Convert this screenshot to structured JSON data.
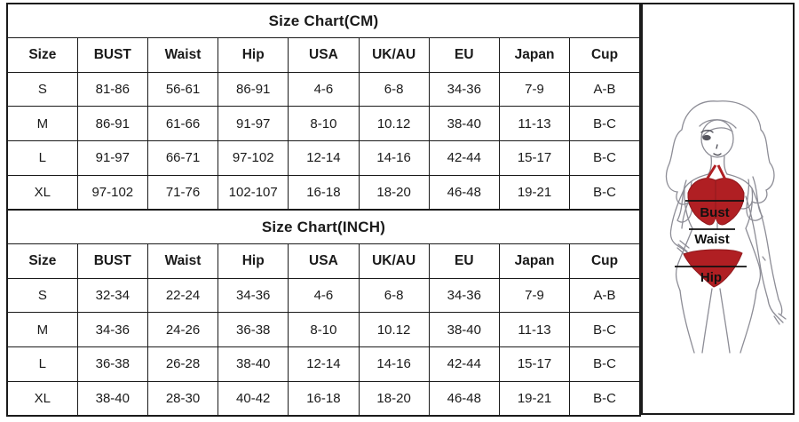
{
  "tables": [
    {
      "id": "cm",
      "title": "Size Chart(CM)",
      "columns": [
        "Size",
        "BUST",
        "Waist",
        "Hip",
        "USA",
        "UK/AU",
        "EU",
        "Japan",
        "Cup"
      ],
      "rows": [
        [
          "S",
          "81-86",
          "56-61",
          "86-91",
          "4-6",
          "6-8",
          "34-36",
          "7-9",
          "A-B"
        ],
        [
          "M",
          "86-91",
          "61-66",
          "91-97",
          "8-10",
          "10.12",
          "38-40",
          "11-13",
          "B-C"
        ],
        [
          "L",
          "91-97",
          "66-71",
          "97-102",
          "12-14",
          "14-16",
          "42-44",
          "15-17",
          "B-C"
        ],
        [
          "XL",
          "97-102",
          "71-76",
          "102-107",
          "16-18",
          "18-20",
          "46-48",
          "19-21",
          "B-C"
        ]
      ]
    },
    {
      "id": "inch",
      "title": "Size Chart(INCH)",
      "columns": [
        "Size",
        "BUST",
        "Waist",
        "Hip",
        "USA",
        "UK/AU",
        "EU",
        "Japan",
        "Cup"
      ],
      "rows": [
        [
          "S",
          "32-34",
          "22-24",
          "34-36",
          "4-6",
          "6-8",
          "34-36",
          "7-9",
          "A-B"
        ],
        [
          "M",
          "34-36",
          "24-26",
          "36-38",
          "8-10",
          "10.12",
          "38-40",
          "11-13",
          "B-C"
        ],
        [
          "L",
          "36-38",
          "26-28",
          "38-40",
          "12-14",
          "14-16",
          "42-44",
          "15-17",
          "B-C"
        ],
        [
          "XL",
          "38-40",
          "28-30",
          "40-42",
          "16-18",
          "18-20",
          "46-48",
          "19-21",
          "B-C"
        ]
      ]
    }
  ],
  "figure": {
    "labels": {
      "bust": "Bust",
      "waist": "Waist",
      "hip": "Hip"
    },
    "bikini_color": "#b01f23",
    "bikini_stroke": "#8f181c",
    "outline_color": "#8d8d96",
    "line_color": "#111111"
  }
}
